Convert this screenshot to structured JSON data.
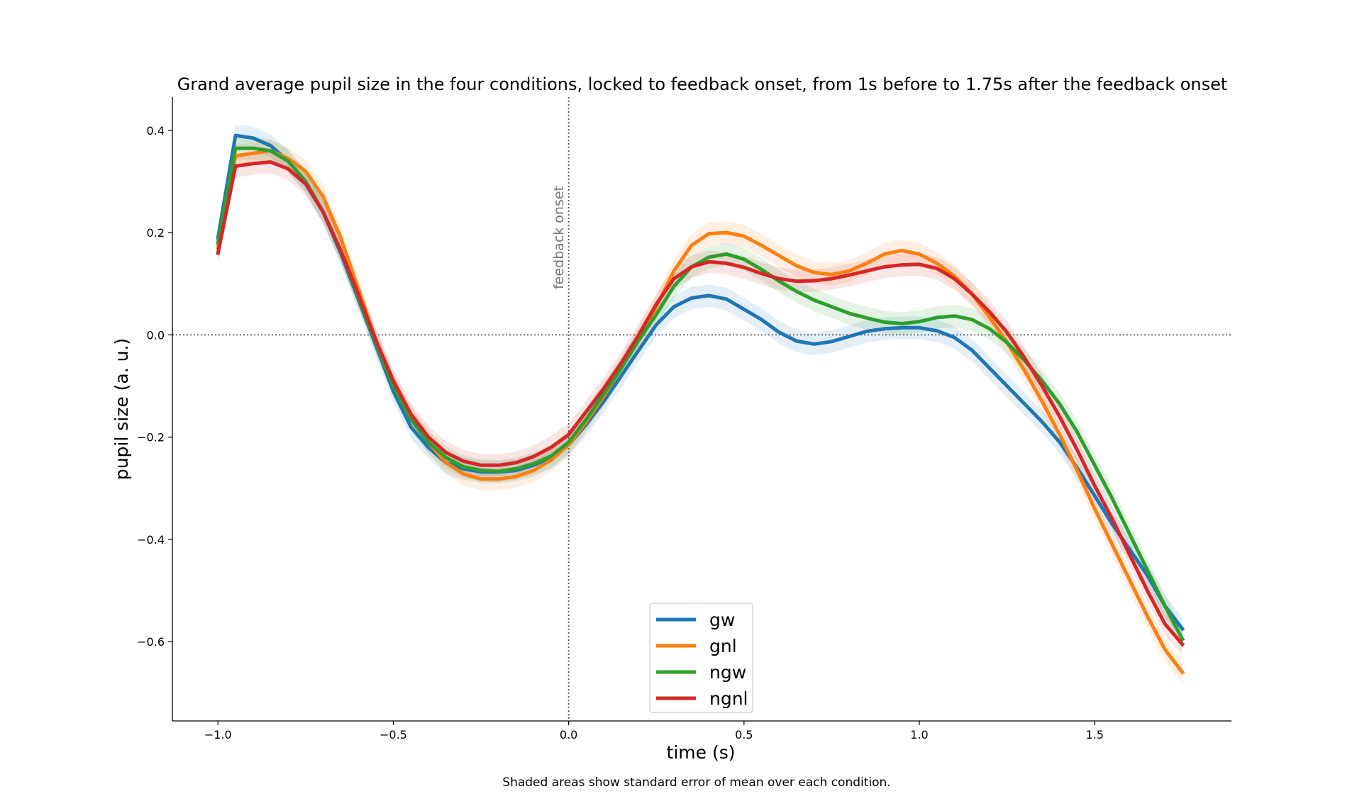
{
  "chart_data": {
    "type": "line",
    "title": "Grand average pupil size in the four conditions, locked to feedback onset, from 1s before to 1.75s after the feedback onset",
    "xlabel": "time (s)",
    "ylabel": "pupil size (a. u.)",
    "caption": "Shaded areas show standard error of mean over each condition.",
    "annotation": "feedback onset",
    "xlim": [
      -1.13,
      1.89
    ],
    "ylim": [
      -0.755,
      0.465
    ],
    "xticks": [
      -1.0,
      -0.5,
      0.0,
      0.5,
      1.0,
      1.5
    ],
    "xtick_labels": [
      "−1.0",
      "−0.5",
      "0.0",
      "0.5",
      "1.0",
      "1.5"
    ],
    "yticks": [
      0.4,
      0.2,
      0.0,
      -0.2,
      -0.4,
      -0.6
    ],
    "ytick_labels": [
      "0.4",
      "0.2",
      "0.0",
      "−0.2",
      "−0.4",
      "−0.6"
    ],
    "reference_lines": {
      "horizontal_y": 0.0,
      "vertical_x": 0.0
    },
    "legend_position": "lower center",
    "x": [
      -1.0,
      -0.95,
      -0.9,
      -0.85,
      -0.8,
      -0.75,
      -0.7,
      -0.65,
      -0.6,
      -0.55,
      -0.5,
      -0.45,
      -0.4,
      -0.35,
      -0.3,
      -0.25,
      -0.2,
      -0.15,
      -0.1,
      -0.05,
      0.0,
      0.05,
      0.1,
      0.15,
      0.2,
      0.25,
      0.3,
      0.35,
      0.4,
      0.45,
      0.5,
      0.55,
      0.6,
      0.65,
      0.7,
      0.75,
      0.8,
      0.85,
      0.9,
      0.95,
      1.0,
      1.05,
      1.1,
      1.15,
      1.2,
      1.25,
      1.3,
      1.35,
      1.4,
      1.45,
      1.5,
      1.55,
      1.6,
      1.65,
      1.7,
      1.75
    ],
    "series": [
      {
        "name": "gw",
        "color": "#1f77b4",
        "sem": 0.022,
        "values": [
          0.19,
          0.39,
          0.385,
          0.37,
          0.34,
          0.3,
          0.24,
          0.16,
          0.07,
          -0.02,
          -0.11,
          -0.18,
          -0.22,
          -0.25,
          -0.262,
          -0.268,
          -0.268,
          -0.265,
          -0.255,
          -0.24,
          -0.215,
          -0.175,
          -0.13,
          -0.08,
          -0.03,
          0.02,
          0.055,
          0.072,
          0.077,
          0.07,
          0.05,
          0.03,
          0.005,
          -0.012,
          -0.018,
          -0.013,
          -0.003,
          0.007,
          0.012,
          0.014,
          0.014,
          0.008,
          -0.005,
          -0.03,
          -0.065,
          -0.1,
          -0.135,
          -0.17,
          -0.21,
          -0.26,
          -0.315,
          -0.37,
          -0.42,
          -0.47,
          -0.53,
          -0.575
        ]
      },
      {
        "name": "gnl",
        "color": "#ff7f0e",
        "sem": 0.022,
        "values": [
          0.17,
          0.35,
          0.355,
          0.36,
          0.345,
          0.32,
          0.27,
          0.19,
          0.09,
          -0.01,
          -0.095,
          -0.16,
          -0.21,
          -0.25,
          -0.272,
          -0.282,
          -0.282,
          -0.277,
          -0.265,
          -0.245,
          -0.215,
          -0.17,
          -0.12,
          -0.065,
          -0.005,
          0.055,
          0.125,
          0.175,
          0.198,
          0.2,
          0.193,
          0.175,
          0.155,
          0.135,
          0.122,
          0.118,
          0.125,
          0.14,
          0.158,
          0.165,
          0.158,
          0.14,
          0.115,
          0.08,
          0.035,
          -0.015,
          -0.07,
          -0.13,
          -0.195,
          -0.265,
          -0.34,
          -0.41,
          -0.48,
          -0.55,
          -0.615,
          -0.66
        ]
      },
      {
        "name": "ngw",
        "color": "#2ca02c",
        "sem": 0.022,
        "values": [
          0.18,
          0.365,
          0.365,
          0.36,
          0.34,
          0.3,
          0.24,
          0.165,
          0.075,
          -0.015,
          -0.1,
          -0.165,
          -0.21,
          -0.24,
          -0.258,
          -0.265,
          -0.267,
          -0.262,
          -0.252,
          -0.237,
          -0.21,
          -0.165,
          -0.115,
          -0.065,
          -0.01,
          0.04,
          0.095,
          0.133,
          0.152,
          0.158,
          0.148,
          0.128,
          0.105,
          0.085,
          0.068,
          0.055,
          0.042,
          0.033,
          0.025,
          0.022,
          0.026,
          0.034,
          0.037,
          0.03,
          0.012,
          -0.015,
          -0.05,
          -0.09,
          -0.135,
          -0.19,
          -0.255,
          -0.32,
          -0.39,
          -0.46,
          -0.53,
          -0.595
        ]
      },
      {
        "name": "ngnl",
        "color": "#d62728",
        "sem": 0.022,
        "values": [
          0.16,
          0.33,
          0.335,
          0.338,
          0.325,
          0.295,
          0.24,
          0.165,
          0.08,
          -0.01,
          -0.09,
          -0.155,
          -0.2,
          -0.23,
          -0.247,
          -0.255,
          -0.255,
          -0.25,
          -0.238,
          -0.22,
          -0.195,
          -0.15,
          -0.105,
          -0.055,
          0.0,
          0.06,
          0.11,
          0.133,
          0.143,
          0.14,
          0.132,
          0.12,
          0.11,
          0.105,
          0.106,
          0.11,
          0.117,
          0.125,
          0.133,
          0.137,
          0.138,
          0.13,
          0.11,
          0.08,
          0.045,
          0.005,
          -0.045,
          -0.1,
          -0.16,
          -0.225,
          -0.295,
          -0.36,
          -0.43,
          -0.5,
          -0.565,
          -0.605
        ]
      }
    ]
  }
}
